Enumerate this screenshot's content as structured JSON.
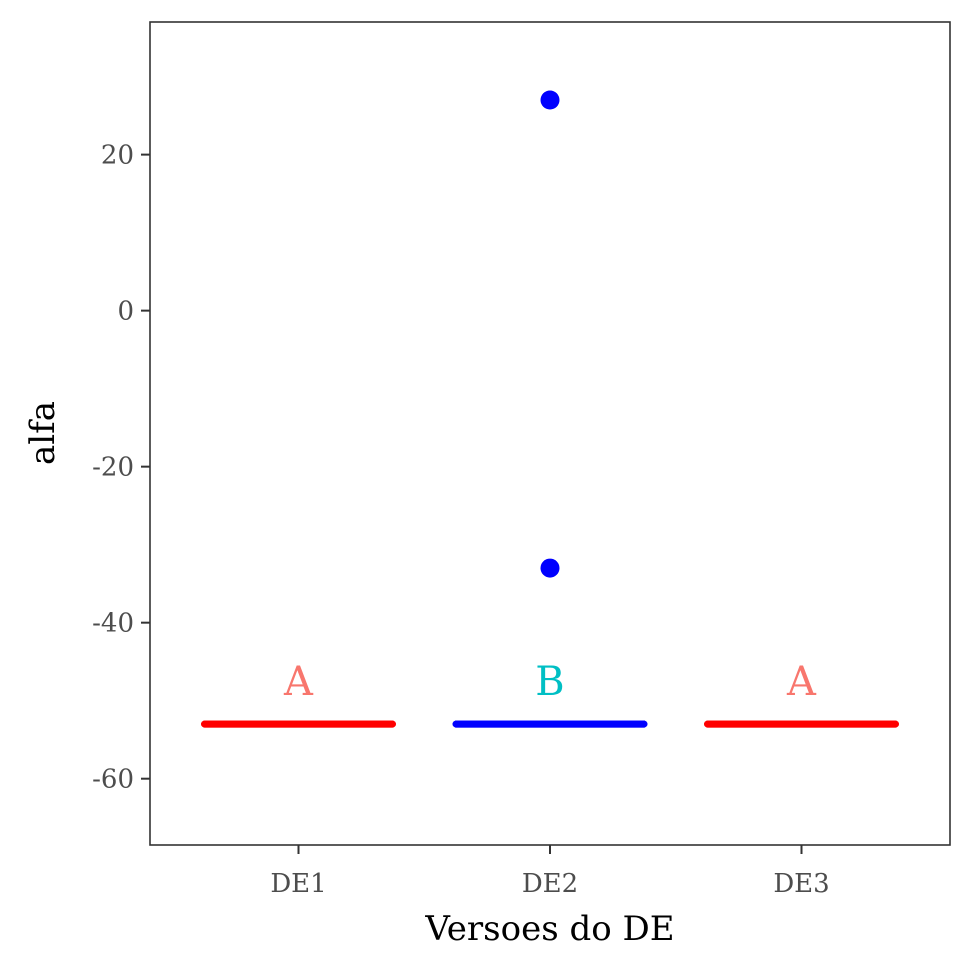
{
  "chart_data": {
    "type": "boxplot",
    "xlabel": "Versoes do DE",
    "ylabel": "alfa",
    "ylim": [
      -68.5,
      37
    ],
    "yticks": [
      20,
      0,
      -20,
      -40,
      -60
    ],
    "categories": [
      "DE1",
      "DE2",
      "DE3"
    ],
    "median": [
      -53,
      -53,
      -53
    ],
    "q1": [
      -53,
      -53,
      -53
    ],
    "q3": [
      -53,
      -53,
      -53
    ],
    "outliers": [
      [],
      [
        27,
        -33
      ],
      []
    ],
    "group_letters": [
      "A",
      "B",
      "A"
    ],
    "letter_y": -47.5,
    "box_colors": [
      "#ff0000",
      "#0000ff",
      "#ff0000"
    ],
    "outlier_color": "#0000ff",
    "letter_colors": {
      "A": "#f8766d",
      "B": "#00bfc4"
    },
    "grid": false
  }
}
